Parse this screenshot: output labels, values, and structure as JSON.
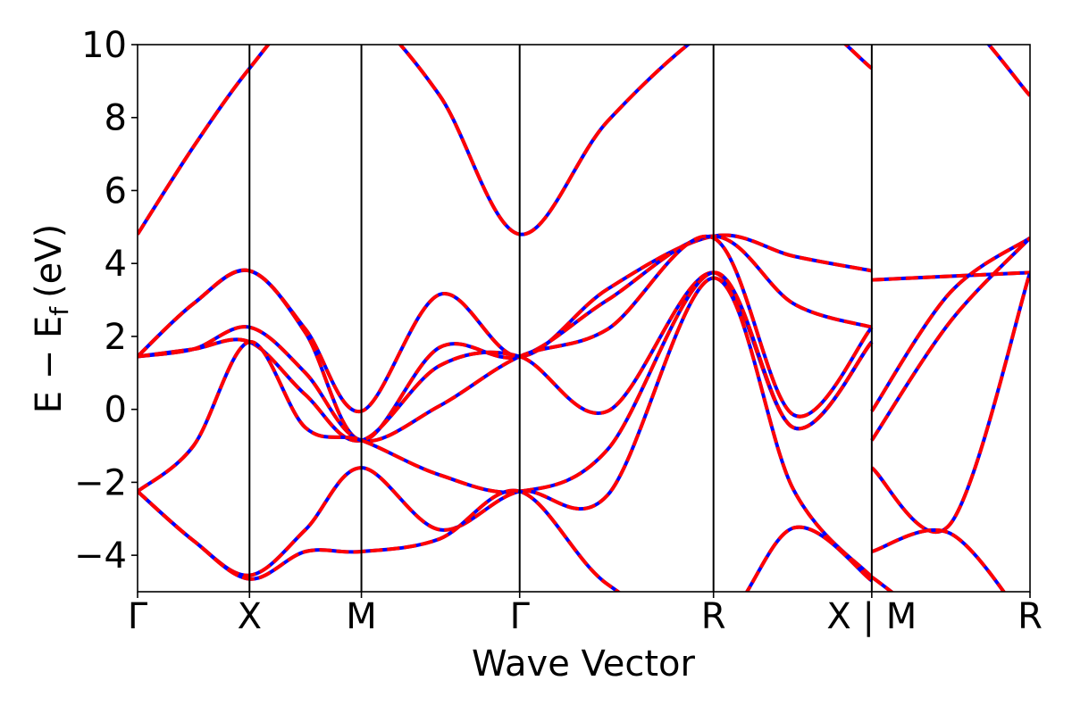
{
  "chart_data": {
    "type": "line",
    "title": "",
    "xlabel": "Wave Vector",
    "ylabel": "E − E",
    "ylabel_subscript": "f",
    "ylabel_unit": "(eV)",
    "ylim": [
      -5,
      10
    ],
    "yticks": [
      -4,
      -2,
      0,
      2,
      4,
      6,
      8,
      10
    ],
    "ytick_labels": [
      "−4",
      "−2",
      "0",
      "2",
      "4",
      "6",
      "8",
      "10"
    ],
    "grid": false,
    "legend": "none",
    "colors": {
      "primary": "#0000ff",
      "overlay": "#ff0000",
      "axes": "#000000",
      "background": "#ffffff"
    },
    "kpoints": [
      {
        "label": "Γ",
        "x": 0.0
      },
      {
        "label": "X",
        "x": 0.5
      },
      {
        "label": "M",
        "x": 1.0
      },
      {
        "label": "Γ",
        "x": 1.707
      },
      {
        "label": "R",
        "x": 2.573
      },
      {
        "label": "X | M",
        "x": 3.28
      },
      {
        "label": "R",
        "x": 3.987
      }
    ],
    "xlim": [
      0.0,
      3.987
    ],
    "series_overlay_dashed": true,
    "series": [
      {
        "x": [
          0,
          0.25,
          0.5,
          0.75,
          1.0,
          1.35,
          1.707,
          2.1,
          2.573,
          2.93,
          3.28,
          3.28,
          3.63,
          3.987
        ],
        "y": [
          4.8,
          7.2,
          9.35,
          11,
          11,
          8.6,
          4.8,
          7.9,
          10.5,
          11,
          9.35,
          11,
          11,
          8.6
        ]
      },
      {
        "x": [
          0,
          0.25,
          0.5,
          0.75,
          1.0,
          1.35,
          1.707,
          2.1,
          2.573,
          2.93,
          3.28,
          3.28,
          3.63,
          3.987
        ],
        "y": [
          1.45,
          2.9,
          3.8,
          2.2,
          -0.05,
          3.15,
          1.45,
          3.3,
          4.75,
          4.2,
          3.8,
          3.55,
          3.65,
          3.75
        ]
      },
      {
        "x": [
          0,
          0.25,
          0.5,
          0.75,
          1.0,
          1.35,
          1.707,
          2.1,
          2.573,
          2.93,
          3.28,
          3.28,
          3.63,
          3.987
        ],
        "y": [
          1.45,
          2.9,
          3.8,
          2.1,
          -0.85,
          1.7,
          1.45,
          3.0,
          4.75,
          2.9,
          2.25,
          -0.05,
          3.2,
          4.7
        ]
      },
      {
        "x": [
          0,
          0.25,
          0.5,
          0.75,
          1.0,
          1.35,
          1.707,
          2.1,
          2.573,
          2.93,
          3.28,
          3.28,
          3.63,
          3.987
        ],
        "y": [
          1.45,
          1.65,
          2.25,
          1.0,
          -0.85,
          0.1,
          1.45,
          2.2,
          4.7,
          -0.15,
          2.25,
          -0.85,
          2.4,
          4.7
        ]
      },
      {
        "x": [
          0,
          0.25,
          0.5,
          0.75,
          1.0,
          1.35,
          1.707,
          2.1,
          2.573,
          2.93,
          3.28,
          3.28,
          3.63,
          3.987
        ],
        "y": [
          1.45,
          1.65,
          1.85,
          0.4,
          -0.85,
          1.2,
          1.45,
          -0.05,
          3.75,
          -0.5,
          1.85,
          -1.6,
          -3.15,
          3.75
        ]
      },
      {
        "x": [
          0,
          0.25,
          0.5,
          0.75,
          1.0,
          1.35,
          1.707,
          2.1,
          2.573,
          2.93,
          3.28,
          3.28,
          3.63,
          3.987
        ],
        "y": [
          -2.25,
          -1.0,
          1.85,
          -0.5,
          -0.85,
          -1.8,
          -2.25,
          -1.1,
          3.75,
          -0.5,
          1.85,
          -3.9,
          -3.4,
          -6
        ]
      },
      {
        "x": [
          0,
          0.25,
          0.5,
          0.75,
          1.0,
          1.35,
          1.707,
          2.1,
          2.573,
          2.93,
          3.28,
          3.28,
          3.63,
          3.987
        ],
        "y": [
          -2.25,
          -3.6,
          -4.55,
          -3.3,
          -1.6,
          -3.3,
          -2.25,
          -2.35,
          3.6,
          -2.2,
          -4.6,
          -4.6,
          -6,
          -6
        ]
      },
      {
        "x": [
          0,
          0.25,
          0.5,
          0.75,
          1.0,
          1.35,
          1.707,
          2.1,
          2.573,
          2.93,
          3.28
        ],
        "y": [
          -2.25,
          -3.6,
          -4.65,
          -3.9,
          -3.9,
          -3.55,
          -2.25,
          -4.8,
          -6,
          -3.25,
          -4.7
        ]
      }
    ]
  }
}
